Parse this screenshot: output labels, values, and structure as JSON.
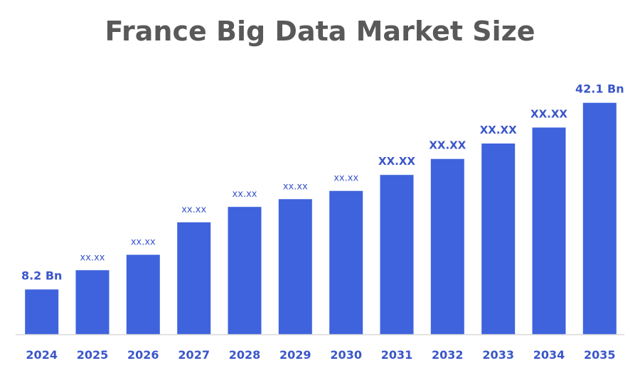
{
  "chart_data": {
    "type": "bar",
    "title": "France Big Data Market Size",
    "xlabel": "",
    "ylabel": "",
    "categories": [
      "2024",
      "2025",
      "2026",
      "2027",
      "2028",
      "2029",
      "2030",
      "2031",
      "2032",
      "2033",
      "2034",
      "2035"
    ],
    "values": [
      8.2,
      11.7,
      14.5,
      20.4,
      23.2,
      24.6,
      26.1,
      29.0,
      31.9,
      34.7,
      37.6,
      42.1
    ],
    "data_labels": [
      "8.2 Bn",
      "xx.xx",
      "xx.xx",
      "xx.xx",
      "xx.xx",
      "xx.xx",
      "xx.xx",
      "XX.XX",
      "XX.XX",
      "XX.XX",
      "XX.XX",
      "42.1 Bn"
    ],
    "ylim": [
      0,
      46.7
    ],
    "grid": false,
    "legend": "none",
    "colors": {
      "bar": "#3e63dd",
      "label": "#3a56c9",
      "title": "#595959"
    }
  }
}
